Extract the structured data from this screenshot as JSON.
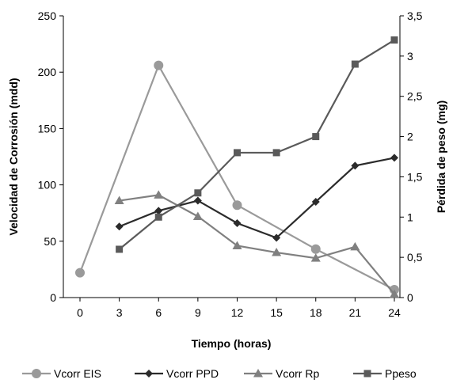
{
  "chart_data": {
    "type": "line",
    "xlabel": "Tiempo (horas)",
    "ylabel": "Velocidad de Corrosión (mdd)",
    "y2label": "Pérdida de peso (mg)",
    "x_ticks": [
      "0",
      "3",
      "6",
      "9",
      "12",
      "15",
      "18",
      "21",
      "24"
    ],
    "x_values": [
      0,
      3,
      6,
      9,
      12,
      15,
      18,
      21,
      24
    ],
    "ylim": [
      0,
      250
    ],
    "y_ticks": [
      "0",
      "50",
      "100",
      "150",
      "200",
      "250"
    ],
    "y_tick_values": [
      0,
      50,
      100,
      150,
      200,
      250
    ],
    "y2lim": [
      0,
      3.5
    ],
    "y2_ticks": [
      "0",
      "0,5",
      "1",
      "1,5",
      "2",
      "2,5",
      "3",
      "3,5"
    ],
    "y2_tick_values": [
      0,
      0.5,
      1,
      1.5,
      2,
      2.5,
      3,
      3.5
    ],
    "legend_position": "bottom",
    "grid": false,
    "series": [
      {
        "name": "Vcorr EIS",
        "axis": "left",
        "marker": "circle",
        "color": "#9a9a9a",
        "x": [
          0,
          6,
          12,
          18,
          24
        ],
        "y": [
          22,
          206,
          82,
          43,
          7
        ]
      },
      {
        "name": "Vcorr PPD",
        "axis": "left",
        "marker": "diamond",
        "color": "#2b2b2b",
        "x": [
          3,
          6,
          9,
          12,
          15,
          18,
          21,
          24
        ],
        "y": [
          63,
          77,
          86,
          66,
          53,
          85,
          117,
          124
        ]
      },
      {
        "name": "Vcorr Rp",
        "axis": "left",
        "marker": "triangle",
        "color": "#808080",
        "x": [
          3,
          6,
          9,
          12,
          15,
          18,
          21,
          24
        ],
        "y": [
          86,
          91,
          72,
          46,
          40,
          35,
          45,
          3
        ]
      },
      {
        "name": "Ppeso",
        "axis": "right",
        "marker": "square",
        "color": "#5a5a5a",
        "x": [
          3,
          6,
          9,
          12,
          15,
          18,
          21,
          24
        ],
        "y": [
          0.6,
          1.0,
          1.3,
          1.8,
          1.8,
          2.0,
          2.9,
          3.2
        ]
      }
    ]
  }
}
